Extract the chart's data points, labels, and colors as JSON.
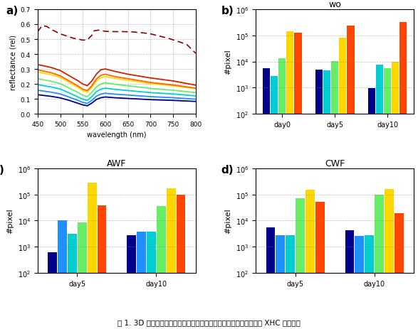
{
  "panel_a": {
    "dashed_line_pts": [
      [
        450,
        0.55
      ],
      [
        460,
        0.59
      ],
      [
        470,
        0.585
      ],
      [
        480,
        0.565
      ],
      [
        490,
        0.55
      ],
      [
        500,
        0.535
      ],
      [
        510,
        0.525
      ],
      [
        520,
        0.515
      ],
      [
        530,
        0.505
      ],
      [
        540,
        0.5
      ],
      [
        550,
        0.493
      ],
      [
        560,
        0.495
      ],
      [
        570,
        0.525
      ],
      [
        575,
        0.555
      ],
      [
        580,
        0.558
      ],
      [
        585,
        0.56
      ],
      [
        590,
        0.558
      ],
      [
        600,
        0.552
      ],
      [
        620,
        0.55
      ],
      [
        640,
        0.55
      ],
      [
        660,
        0.548
      ],
      [
        680,
        0.543
      ],
      [
        700,
        0.535
      ],
      [
        720,
        0.52
      ],
      [
        740,
        0.505
      ],
      [
        760,
        0.485
      ],
      [
        780,
        0.465
      ],
      [
        800,
        0.405
      ]
    ],
    "solid_lines": [
      {
        "color": "#cc2200",
        "pts": [
          [
            450,
            0.33
          ],
          [
            480,
            0.31
          ],
          [
            500,
            0.29
          ],
          [
            520,
            0.255
          ],
          [
            540,
            0.22
          ],
          [
            550,
            0.2
          ],
          [
            560,
            0.188
          ],
          [
            570,
            0.22
          ],
          [
            580,
            0.265
          ],
          [
            590,
            0.295
          ],
          [
            600,
            0.3
          ],
          [
            620,
            0.285
          ],
          [
            650,
            0.265
          ],
          [
            700,
            0.24
          ],
          [
            750,
            0.22
          ],
          [
            800,
            0.192
          ]
        ]
      },
      {
        "color": "#ff6600",
        "pts": [
          [
            450,
            0.295
          ],
          [
            480,
            0.275
          ],
          [
            500,
            0.255
          ],
          [
            520,
            0.22
          ],
          [
            540,
            0.185
          ],
          [
            550,
            0.165
          ],
          [
            560,
            0.155
          ],
          [
            570,
            0.188
          ],
          [
            580,
            0.232
          ],
          [
            590,
            0.258
          ],
          [
            600,
            0.265
          ],
          [
            620,
            0.25
          ],
          [
            650,
            0.235
          ],
          [
            700,
            0.21
          ],
          [
            750,
            0.193
          ],
          [
            800,
            0.172
          ]
        ]
      },
      {
        "color": "#ffd700",
        "pts": [
          [
            450,
            0.28
          ],
          [
            480,
            0.262
          ],
          [
            500,
            0.245
          ],
          [
            520,
            0.21
          ],
          [
            540,
            0.175
          ],
          [
            550,
            0.155
          ],
          [
            560,
            0.145
          ],
          [
            570,
            0.178
          ],
          [
            580,
            0.218
          ],
          [
            590,
            0.242
          ],
          [
            600,
            0.25
          ],
          [
            620,
            0.238
          ],
          [
            650,
            0.225
          ],
          [
            700,
            0.202
          ],
          [
            750,
            0.188
          ],
          [
            800,
            0.168
          ]
        ]
      },
      {
        "color": "#66ee66",
        "pts": [
          [
            450,
            0.235
          ],
          [
            480,
            0.218
          ],
          [
            500,
            0.202
          ],
          [
            520,
            0.172
          ],
          [
            540,
            0.142
          ],
          [
            550,
            0.125
          ],
          [
            560,
            0.115
          ],
          [
            570,
            0.145
          ],
          [
            580,
            0.18
          ],
          [
            590,
            0.2
          ],
          [
            600,
            0.208
          ],
          [
            620,
            0.198
          ],
          [
            650,
            0.188
          ],
          [
            700,
            0.17
          ],
          [
            750,
            0.158
          ],
          [
            800,
            0.142
          ]
        ]
      },
      {
        "color": "#00d0d0",
        "pts": [
          [
            450,
            0.195
          ],
          [
            480,
            0.18
          ],
          [
            500,
            0.166
          ],
          [
            520,
            0.14
          ],
          [
            540,
            0.112
          ],
          [
            550,
            0.098
          ],
          [
            560,
            0.09
          ],
          [
            570,
            0.115
          ],
          [
            580,
            0.148
          ],
          [
            590,
            0.165
          ],
          [
            600,
            0.172
          ],
          [
            620,
            0.164
          ],
          [
            650,
            0.156
          ],
          [
            700,
            0.142
          ],
          [
            750,
            0.133
          ],
          [
            800,
            0.12
          ]
        ]
      },
      {
        "color": "#1e90ff",
        "pts": [
          [
            450,
            0.158
          ],
          [
            480,
            0.145
          ],
          [
            500,
            0.133
          ],
          [
            520,
            0.112
          ],
          [
            540,
            0.089
          ],
          [
            550,
            0.077
          ],
          [
            560,
            0.07
          ],
          [
            570,
            0.09
          ],
          [
            580,
            0.118
          ],
          [
            590,
            0.132
          ],
          [
            600,
            0.138
          ],
          [
            620,
            0.132
          ],
          [
            650,
            0.126
          ],
          [
            700,
            0.115
          ],
          [
            750,
            0.108
          ],
          [
            800,
            0.098
          ]
        ]
      },
      {
        "color": "#00008b",
        "pts": [
          [
            450,
            0.128
          ],
          [
            480,
            0.117
          ],
          [
            500,
            0.107
          ],
          [
            520,
            0.09
          ],
          [
            540,
            0.07
          ],
          [
            550,
            0.06
          ],
          [
            560,
            0.054
          ],
          [
            570,
            0.072
          ],
          [
            580,
            0.096
          ],
          [
            590,
            0.108
          ],
          [
            600,
            0.113
          ],
          [
            620,
            0.108
          ],
          [
            650,
            0.103
          ],
          [
            700,
            0.095
          ],
          [
            750,
            0.09
          ],
          [
            800,
            0.083
          ]
        ]
      }
    ],
    "xlabel": "wavelength (nm)",
    "ylabel": "reflectance (rel)",
    "xlim": [
      450,
      800
    ],
    "ylim": [
      0.0,
      0.7
    ],
    "xticks": [
      450,
      500,
      550,
      600,
      650,
      700,
      750,
      800
    ],
    "yticks": [
      0.0,
      0.1,
      0.2,
      0.3,
      0.4,
      0.5,
      0.6,
      0.7
    ]
  },
  "panel_b": {
    "title": "wo",
    "groups": [
      "day0",
      "day5",
      "day10"
    ],
    "bar_colors": [
      "#00008b",
      "#00ced1",
      "#66ee66",
      "#ffd700",
      "#ff4500"
    ],
    "data": [
      [
        5500,
        4800,
        950
      ],
      [
        2800,
        4700,
        7500
      ],
      [
        13000,
        10500,
        5500
      ],
      [
        140000,
        80000,
        9500
      ],
      [
        125000,
        240000,
        320000
      ]
    ],
    "ylim": [
      100,
      1000000
    ],
    "ylabel": "#pixel"
  },
  "panel_c": {
    "title": "AWF",
    "groups": [
      "day5",
      "day10"
    ],
    "bar_colors": [
      "#00008b",
      "#1e90ff",
      "#00ced1",
      "#66ee66",
      "#ffd700",
      "#ff4500"
    ],
    "data": [
      [
        620,
        2700
      ],
      [
        10500,
        3700
      ],
      [
        3200,
        3800
      ],
      [
        8500,
        37000
      ],
      [
        285000,
        175000
      ],
      [
        38000,
        100000
      ]
    ],
    "ylim": [
      100,
      1000000
    ],
    "ylabel": "#pixel"
  },
  "panel_d": {
    "title": "CWF",
    "groups": [
      "day5",
      "day10"
    ],
    "bar_colors": [
      "#00008b",
      "#1e90ff",
      "#00ced1",
      "#66ee66",
      "#ffd700",
      "#ff4500"
    ],
    "data": [
      [
        5500,
        4200
      ],
      [
        2800,
        2600
      ],
      [
        2800,
        2800
      ],
      [
        72000,
        96000
      ],
      [
        155000,
        165000
      ],
      [
        52000,
        19000
      ]
    ],
    "ylim": [
      100,
      1000000
    ],
    "ylabel": "#pixel"
  },
  "caption": "图 1. 3D 伤口模型的反射光谱（號线是外渗液体部分的反射曲线）和 XHC 聚类结果",
  "background_color": "#ffffff"
}
